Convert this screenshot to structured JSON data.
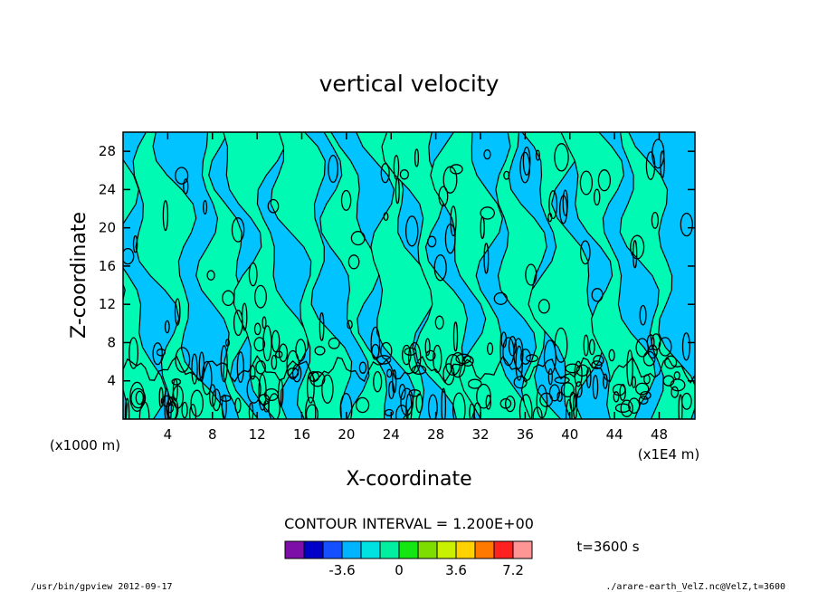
{
  "chart_data": {
    "type": "heatmap",
    "title": "vertical velocity",
    "xlabel": "X-coordinate",
    "ylabel": "Z-coordinate",
    "x_unit_label": "(x1E4 m)",
    "y_unit_label": "(x1000 m)",
    "xlim": [
      0,
      51.2
    ],
    "ylim": [
      0,
      30
    ],
    "x_ticks": [
      "4",
      "8",
      "12",
      "16",
      "20",
      "24",
      "28",
      "32",
      "36",
      "40",
      "44",
      "48"
    ],
    "y_ticks": [
      "4",
      "8",
      "12",
      "16",
      "20",
      "24",
      "28"
    ],
    "contour_interval_label": "CONTOUR INTERVAL = 1.200E+00",
    "time_label": "t=3600 s",
    "colorbar": {
      "colors": [
        "#7d0fa8",
        "#0000c8",
        "#1450ff",
        "#00b4ff",
        "#00e1e1",
        "#00f0a0",
        "#14e614",
        "#7ddc00",
        "#c8f000",
        "#ffd200",
        "#ff7800",
        "#ff2020",
        "#ff9696"
      ],
      "labels": [
        "-3.6",
        "0",
        "3.6",
        "7.2"
      ],
      "label_positions": [
        -3.6,
        0,
        3.6,
        7.2
      ],
      "range": [
        -7.2,
        8.4
      ]
    },
    "field_colors": {
      "negative": "#00c3ff",
      "positive": "#00fab4"
    }
  },
  "footer": {
    "left": "/usr/bin/gpview  2012-09-17",
    "right": "./arare-earth_VelZ.nc@VelZ,t=3600"
  }
}
